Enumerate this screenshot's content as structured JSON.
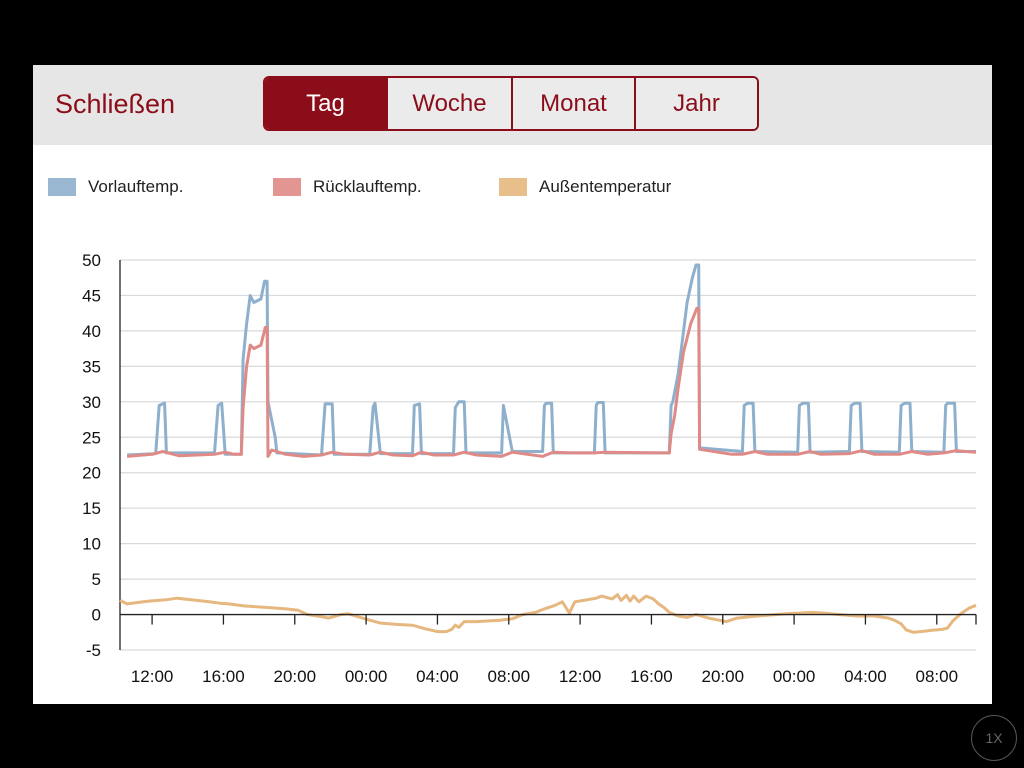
{
  "header": {
    "close_label": "Schließen",
    "segments": [
      {
        "label": "Tag",
        "active": true
      },
      {
        "label": "Woche",
        "active": false
      },
      {
        "label": "Monat",
        "active": false
      },
      {
        "label": "Jahr",
        "active": false
      }
    ]
  },
  "speed_label": "1X",
  "chart_data": {
    "type": "line",
    "y_range": [
      -5,
      50
    ],
    "y_ticks": [
      50,
      45,
      40,
      35,
      30,
      25,
      20,
      15,
      10,
      5,
      0,
      -5
    ],
    "x_range": [
      10.2,
      58.2
    ],
    "x_ticks": [
      {
        "x": 12,
        "label": "12:00"
      },
      {
        "x": 16,
        "label": "16:00"
      },
      {
        "x": 20,
        "label": "20:00"
      },
      {
        "x": 24,
        "label": "00:00"
      },
      {
        "x": 28,
        "label": "04:00"
      },
      {
        "x": 32,
        "label": "08:00"
      },
      {
        "x": 36,
        "label": "12:00"
      },
      {
        "x": 40,
        "label": "16:00"
      },
      {
        "x": 44,
        "label": "20:00"
      },
      {
        "x": 48,
        "label": "00:00"
      },
      {
        "x": 52,
        "label": "04:00"
      },
      {
        "x": 56,
        "label": "08:00"
      }
    ],
    "grid": true,
    "legend_position": "top-left",
    "series": [
      {
        "name": "Vorlauftemp.",
        "color": "#8eb0cc",
        "points": [
          [
            10.6,
            22.5
          ],
          [
            12.2,
            22.7
          ],
          [
            12.4,
            29.5
          ],
          [
            12.7,
            29.8
          ],
          [
            12.8,
            22.8
          ],
          [
            15.5,
            22.8
          ],
          [
            15.7,
            29.5
          ],
          [
            15.9,
            29.8
          ],
          [
            16.1,
            22.6
          ],
          [
            17.0,
            22.6
          ],
          [
            17.1,
            36
          ],
          [
            17.3,
            41
          ],
          [
            17.5,
            45
          ],
          [
            17.7,
            44
          ],
          [
            18.1,
            44.5
          ],
          [
            18.3,
            47
          ],
          [
            18.45,
            47
          ],
          [
            18.5,
            30
          ],
          [
            18.9,
            25
          ],
          [
            19.0,
            22.8
          ],
          [
            21.5,
            22.5
          ],
          [
            21.7,
            29.7
          ],
          [
            22.1,
            29.7
          ],
          [
            22.2,
            22.6
          ],
          [
            24.2,
            22.6
          ],
          [
            24.4,
            29.3
          ],
          [
            24.5,
            29.8
          ],
          [
            24.8,
            22.7
          ],
          [
            26.6,
            22.7
          ],
          [
            26.7,
            29.5
          ],
          [
            27.0,
            29.7
          ],
          [
            27.1,
            22.7
          ],
          [
            28.9,
            22.7
          ],
          [
            29.0,
            29.2
          ],
          [
            29.2,
            30
          ],
          [
            29.5,
            30
          ],
          [
            29.6,
            22.8
          ],
          [
            31.6,
            22.8
          ],
          [
            31.7,
            29.5
          ],
          [
            32.2,
            23.0
          ],
          [
            33.9,
            23.0
          ],
          [
            34.0,
            29.5
          ],
          [
            34.1,
            29.8
          ],
          [
            34.4,
            29.8
          ],
          [
            34.5,
            22.8
          ],
          [
            36.8,
            22.8
          ],
          [
            36.9,
            29.5
          ],
          [
            37.0,
            29.9
          ],
          [
            37.3,
            29.9
          ],
          [
            37.4,
            22.8
          ],
          [
            41.0,
            22.8
          ],
          [
            41.1,
            29.5
          ],
          [
            41.2,
            30
          ],
          [
            41.5,
            34
          ],
          [
            41.7,
            38
          ],
          [
            42.0,
            44
          ],
          [
            42.3,
            47.5
          ],
          [
            42.5,
            49.3
          ],
          [
            42.65,
            49.3
          ],
          [
            42.7,
            23.5
          ],
          [
            45.1,
            23.0
          ],
          [
            45.2,
            29.5
          ],
          [
            45.4,
            29.8
          ],
          [
            45.7,
            29.8
          ],
          [
            45.8,
            23.0
          ],
          [
            48.2,
            22.9
          ],
          [
            48.3,
            29.5
          ],
          [
            48.5,
            29.8
          ],
          [
            48.8,
            29.8
          ],
          [
            48.9,
            22.9
          ],
          [
            51.1,
            23.0
          ],
          [
            51.2,
            29.5
          ],
          [
            51.4,
            29.8
          ],
          [
            51.7,
            29.8
          ],
          [
            51.8,
            23.0
          ],
          [
            53.9,
            22.9
          ],
          [
            54.0,
            29.5
          ],
          [
            54.2,
            29.8
          ],
          [
            54.5,
            29.8
          ],
          [
            54.6,
            23.0
          ],
          [
            56.4,
            22.9
          ],
          [
            56.5,
            29.5
          ],
          [
            56.6,
            29.8
          ],
          [
            57.0,
            29.8
          ],
          [
            57.1,
            23.0
          ],
          [
            58.2,
            23.0
          ]
        ]
      },
      {
        "name": "Rücklauftemp.",
        "color": "#df8a86",
        "points": [
          [
            10.6,
            22.3
          ],
          [
            12.0,
            22.6
          ],
          [
            12.6,
            23.0
          ],
          [
            13.5,
            22.4
          ],
          [
            15.5,
            22.6
          ],
          [
            16.1,
            22.9
          ],
          [
            16.6,
            22.6
          ],
          [
            17.0,
            22.6
          ],
          [
            17.1,
            29.2
          ],
          [
            17.3,
            35
          ],
          [
            17.5,
            38
          ],
          [
            17.7,
            37.5
          ],
          [
            18.1,
            38
          ],
          [
            18.35,
            40.5
          ],
          [
            18.45,
            40.5
          ],
          [
            18.5,
            22.3
          ],
          [
            18.7,
            23.2
          ],
          [
            19.5,
            22.6
          ],
          [
            20.5,
            22.3
          ],
          [
            21.5,
            22.5
          ],
          [
            22.1,
            22.9
          ],
          [
            22.8,
            22.6
          ],
          [
            24.2,
            22.5
          ],
          [
            24.8,
            22.9
          ],
          [
            25.5,
            22.5
          ],
          [
            26.6,
            22.4
          ],
          [
            27.1,
            22.9
          ],
          [
            27.8,
            22.5
          ],
          [
            28.9,
            22.5
          ],
          [
            29.5,
            22.9
          ],
          [
            30.2,
            22.5
          ],
          [
            31.6,
            22.3
          ],
          [
            32.2,
            22.9
          ],
          [
            33.9,
            22.3
          ],
          [
            34.5,
            22.9
          ],
          [
            35.5,
            22.8
          ],
          [
            36.8,
            22.8
          ],
          [
            37.4,
            22.9
          ],
          [
            40.5,
            22.8
          ],
          [
            41.0,
            22.8
          ],
          [
            41.1,
            25.5
          ],
          [
            41.3,
            28
          ],
          [
            41.5,
            32
          ],
          [
            41.8,
            37
          ],
          [
            42.2,
            41
          ],
          [
            42.55,
            43.2
          ],
          [
            42.65,
            43.2
          ],
          [
            42.7,
            23.3
          ],
          [
            44.5,
            22.6
          ],
          [
            45.1,
            22.6
          ],
          [
            45.8,
            23.0
          ],
          [
            46.5,
            22.6
          ],
          [
            48.2,
            22.6
          ],
          [
            48.9,
            23.0
          ],
          [
            49.5,
            22.6
          ],
          [
            51.1,
            22.7
          ],
          [
            51.8,
            23.1
          ],
          [
            52.5,
            22.6
          ],
          [
            53.9,
            22.6
          ],
          [
            54.6,
            23.0
          ],
          [
            55.5,
            22.6
          ],
          [
            56.4,
            22.8
          ],
          [
            57.1,
            23.1
          ],
          [
            58.2,
            22.9
          ]
        ]
      },
      {
        "name": "Außentemperatur",
        "color": "#e6b77e",
        "points": [
          [
            10.2,
            2.0
          ],
          [
            10.6,
            1.5
          ],
          [
            11.8,
            1.9
          ],
          [
            12.8,
            2.1
          ],
          [
            13.4,
            2.3
          ],
          [
            14.2,
            2.1
          ],
          [
            15.2,
            1.8
          ],
          [
            15.8,
            1.6
          ],
          [
            16.3,
            1.5
          ],
          [
            17.2,
            1.2
          ],
          [
            18.5,
            1.0
          ],
          [
            19.5,
            0.8
          ],
          [
            20.2,
            0.6
          ],
          [
            20.7,
            0.0
          ],
          [
            21.5,
            -0.3
          ],
          [
            21.9,
            -0.5
          ],
          [
            22.3,
            -0.2
          ],
          [
            22.6,
            0.0
          ],
          [
            23.0,
            0.1
          ],
          [
            23.4,
            -0.2
          ],
          [
            24.2,
            -0.8
          ],
          [
            24.8,
            -1.2
          ],
          [
            25.8,
            -1.4
          ],
          [
            26.6,
            -1.5
          ],
          [
            27.3,
            -2.0
          ],
          [
            28.0,
            -2.4
          ],
          [
            28.5,
            -2.4
          ],
          [
            28.8,
            -2.1
          ],
          [
            29.0,
            -1.5
          ],
          [
            29.2,
            -1.8
          ],
          [
            29.5,
            -1.0
          ],
          [
            30.2,
            -1.0
          ],
          [
            31.5,
            -0.8
          ],
          [
            32.2,
            -0.6
          ],
          [
            32.8,
            0.0
          ],
          [
            33.5,
            0.3
          ],
          [
            34.0,
            0.8
          ],
          [
            34.6,
            1.3
          ],
          [
            35.0,
            1.8
          ],
          [
            35.4,
            0.2
          ],
          [
            35.7,
            1.8
          ],
          [
            36.2,
            2.0
          ],
          [
            36.9,
            2.3
          ],
          [
            37.2,
            2.6
          ],
          [
            37.5,
            2.4
          ],
          [
            37.8,
            2.2
          ],
          [
            38.1,
            2.8
          ],
          [
            38.3,
            2.0
          ],
          [
            38.6,
            2.7
          ],
          [
            38.8,
            1.9
          ],
          [
            39.0,
            2.6
          ],
          [
            39.3,
            1.8
          ],
          [
            39.7,
            2.6
          ],
          [
            40.1,
            2.2
          ],
          [
            40.4,
            1.5
          ],
          [
            40.7,
            1.0
          ],
          [
            41.0,
            0.3
          ],
          [
            41.5,
            -0.2
          ],
          [
            42.0,
            -0.4
          ],
          [
            42.5,
            0.0
          ],
          [
            43.2,
            -0.5
          ],
          [
            43.8,
            -0.8
          ],
          [
            44.2,
            -1.0
          ],
          [
            44.8,
            -0.5
          ],
          [
            45.5,
            -0.3
          ],
          [
            46.5,
            -0.1
          ],
          [
            47.5,
            0.1
          ],
          [
            48.3,
            0.2
          ],
          [
            49.0,
            0.3
          ],
          [
            49.7,
            0.2
          ],
          [
            50.5,
            0.0
          ],
          [
            51.5,
            -0.2
          ],
          [
            52.5,
            -0.2
          ],
          [
            53.3,
            -0.5
          ],
          [
            53.7,
            -0.9
          ],
          [
            54.0,
            -1.3
          ],
          [
            54.3,
            -2.2
          ],
          [
            54.7,
            -2.5
          ],
          [
            55.1,
            -2.4
          ],
          [
            55.8,
            -2.2
          ],
          [
            56.3,
            -2.1
          ],
          [
            56.6,
            -1.9
          ],
          [
            56.9,
            -0.9
          ],
          [
            57.4,
            0.2
          ],
          [
            57.8,
            0.9
          ],
          [
            58.2,
            1.3
          ]
        ]
      }
    ]
  }
}
